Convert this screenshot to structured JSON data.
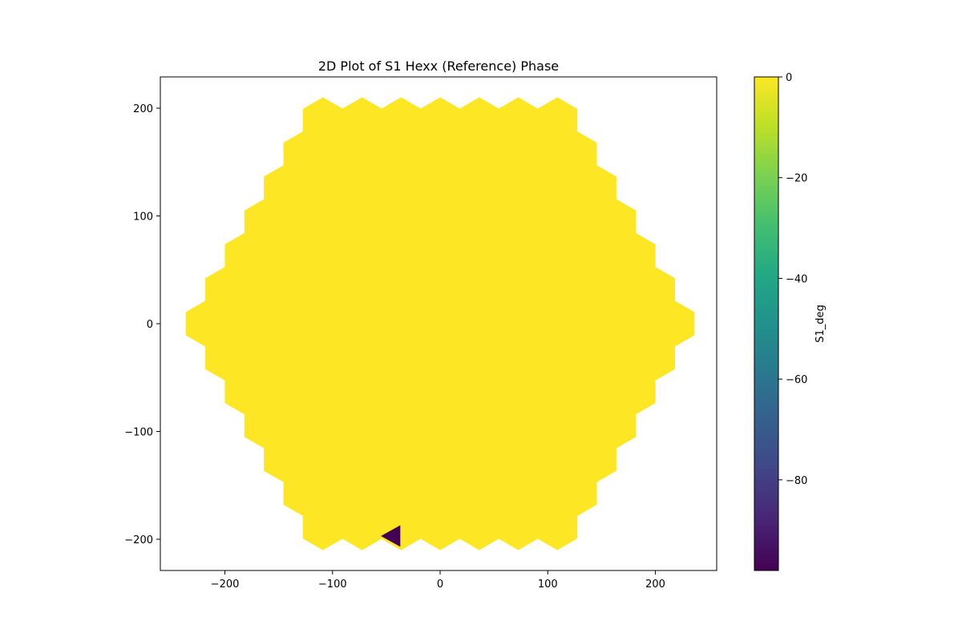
{
  "chart_data": {
    "type": "heatmap",
    "subtype": "hexagonal-tiling",
    "title": "2D Plot of S1 Hexx (Reference) Phase",
    "xlabel": "",
    "ylabel": "",
    "xlim": [
      -260,
      257
    ],
    "ylim": [
      -229,
      229
    ],
    "xticks": [
      -200,
      -100,
      0,
      100,
      200
    ],
    "yticks": [
      -200,
      -100,
      0,
      100,
      200
    ],
    "xtick_labels": [
      "−200",
      "−100",
      "0",
      "100",
      "200"
    ],
    "ytick_labels": [
      "−200",
      "−100",
      "0",
      "100",
      "200"
    ],
    "grid": false,
    "colorbar": {
      "label": "S1_deg",
      "colormap": "viridis",
      "range": [
        -98,
        0
      ],
      "ticks": [
        0,
        -20,
        -40,
        -60,
        -80
      ],
      "tick_labels": [
        "0",
        "−20",
        "−40",
        "−60",
        "−80"
      ]
    },
    "hex_grid": {
      "rings": 6,
      "element_spacing": 36.3,
      "uniform_value": 0
    },
    "anomalies": [
      {
        "description": "small triangular cell",
        "vertices": [
          [
            -55,
            -197
          ],
          [
            -37,
            -187
          ],
          [
            -37,
            -207
          ]
        ],
        "value": -98
      }
    ]
  }
}
